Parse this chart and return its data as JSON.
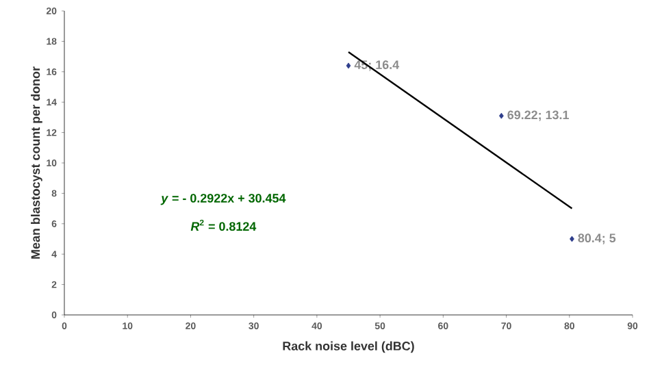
{
  "chart_data": {
    "type": "scatter",
    "xlabel": "Rack noise level (dBC)",
    "ylabel": "Mean blastocyst count per donor",
    "xlim": [
      0,
      90
    ],
    "xticks": [
      0,
      10,
      20,
      30,
      40,
      50,
      60,
      70,
      80,
      90
    ],
    "ylim": [
      0,
      20
    ],
    "yticks": [
      0,
      2,
      4,
      6,
      8,
      10,
      12,
      14,
      16,
      18,
      20
    ],
    "grid": false,
    "marker": "diamond",
    "series": [
      {
        "color": "#2e3e8c",
        "x": [
          45,
          69.22,
          80.4
        ],
        "values": [
          16.4,
          13.1,
          5
        ],
        "value_labels": [
          "45; 16.4",
          "69.22; 13.1",
          "80.4; 5"
        ]
      },
      {
        "type": "line",
        "color": "#000000",
        "marker": "none",
        "line_style": "solid",
        "x": [
          45,
          80.4
        ],
        "values": [
          17.3,
          7.0
        ]
      }
    ],
    "annotations": [
      "*y* = - 0.2922x + 30.454",
      "*R*$^{2}$ = 0.8124"
    ]
  }
}
